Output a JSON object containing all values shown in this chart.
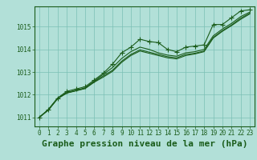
{
  "xlabel": "Graphe pression niveau de la mer (hPa)",
  "background_color": "#b2e0d8",
  "grid_color": "#7bbfb5",
  "line_color": "#1a5c1a",
  "x_ticks": [
    0,
    1,
    2,
    3,
    4,
    5,
    6,
    7,
    8,
    9,
    10,
    11,
    12,
    13,
    14,
    15,
    16,
    17,
    18,
    19,
    20,
    21,
    22,
    23
  ],
  "ylim": [
    1010.6,
    1015.9
  ],
  "yticks": [
    1011,
    1012,
    1013,
    1014,
    1015
  ],
  "series": [
    [
      1011.0,
      1011.35,
      1011.85,
      1012.15,
      1012.25,
      1012.35,
      1012.65,
      1012.95,
      1013.35,
      1013.85,
      1014.1,
      1014.45,
      1014.35,
      1014.3,
      1014.0,
      1013.9,
      1014.1,
      1014.15,
      1014.2,
      1015.1,
      1015.1,
      1015.4,
      1015.7,
      1015.75
    ],
    [
      1011.0,
      1011.35,
      1011.85,
      1012.1,
      1012.2,
      1012.3,
      1012.6,
      1012.9,
      1013.2,
      1013.6,
      1013.9,
      1014.1,
      1014.0,
      1013.85,
      1013.75,
      1013.7,
      1013.85,
      1013.9,
      1014.0,
      1014.6,
      1014.9,
      1015.15,
      1015.45,
      1015.65
    ],
    [
      1011.0,
      1011.33,
      1011.83,
      1012.08,
      1012.18,
      1012.28,
      1012.58,
      1012.83,
      1013.08,
      1013.48,
      1013.78,
      1013.98,
      1013.88,
      1013.78,
      1013.68,
      1013.63,
      1013.78,
      1013.83,
      1013.93,
      1014.53,
      1014.83,
      1015.08,
      1015.38,
      1015.6
    ],
    [
      1011.0,
      1011.32,
      1011.82,
      1012.07,
      1012.17,
      1012.27,
      1012.55,
      1012.78,
      1013.03,
      1013.43,
      1013.73,
      1013.93,
      1013.83,
      1013.73,
      1013.63,
      1013.58,
      1013.73,
      1013.8,
      1013.9,
      1014.5,
      1014.8,
      1015.05,
      1015.33,
      1015.57
    ]
  ],
  "marker_series": 0,
  "marker": "+",
  "marker_size": 4,
  "marker_linewidth": 0.8,
  "xlabel_fontsize": 8,
  "xlabel_fontweight": "bold",
  "line_width": 0.8,
  "tick_fontsize": 5.5
}
